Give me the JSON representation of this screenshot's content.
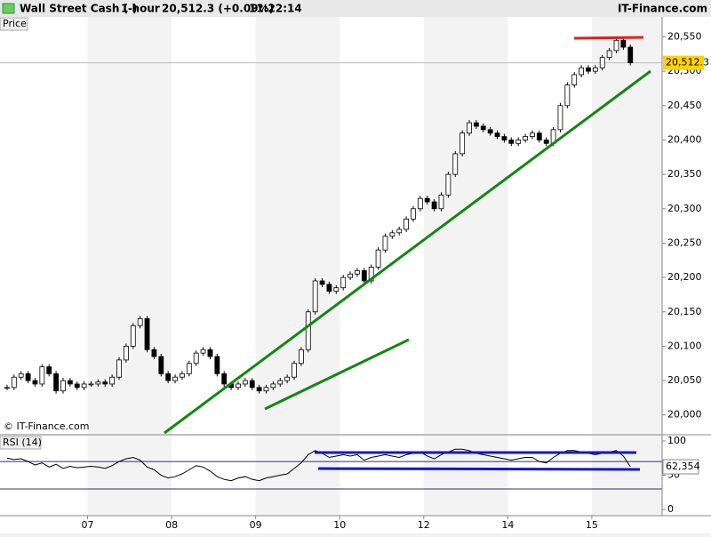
{
  "header": {
    "instrument": "Wall Street Cash (-)",
    "interval": "1 hour",
    "quote": "20,512.3 (+0.09%)",
    "time": "11:22:14",
    "brand": "IT-Finance.com"
  },
  "chart_data": [
    {
      "type": "candlestick",
      "title": "Price",
      "credit": "© IT-Finance.com",
      "up_color": "#ffffff",
      "down_color": "#000000",
      "last_label": "20,512.3",
      "last_color": "#ffd200",
      "values": [
        20040,
        20055,
        20060,
        20050,
        20045,
        20070,
        20060,
        20035,
        20050,
        20045,
        20040,
        20045,
        20045,
        20048,
        20045,
        20055,
        20080,
        20100,
        20130,
        20140,
        20095,
        20085,
        20060,
        20050,
        20055,
        20060,
        20075,
        20090,
        20095,
        20085,
        20060,
        20045,
        20040,
        20045,
        20050,
        20040,
        20035,
        20040,
        20045,
        20050,
        20055,
        20075,
        20095,
        20150,
        20195,
        20190,
        20180,
        20185,
        20200,
        20205,
        20210,
        20195,
        20215,
        20240,
        20260,
        20265,
        20270,
        20285,
        20300,
        20315,
        20310,
        20300,
        20320,
        20350,
        20380,
        20410,
        20425,
        20420,
        20415,
        20410,
        20405,
        20400,
        20395,
        20400,
        20405,
        20410,
        20400,
        20395,
        20415,
        20450,
        20480,
        20495,
        20505,
        20500,
        20505,
        20520,
        20530,
        20545,
        20535,
        20512.3
      ],
      "ylim": [
        19972.5,
        20570
      ],
      "yticks": [
        {
          "value": 20000,
          "label": "20,000"
        },
        {
          "value": 20050,
          "label": "20,050"
        },
        {
          "value": 20100,
          "label": "20,100"
        },
        {
          "value": 20150,
          "label": "20,150"
        },
        {
          "value": 20200,
          "label": "20,200"
        },
        {
          "value": 20250,
          "label": "20,250"
        },
        {
          "value": 20300,
          "label": "20,300"
        },
        {
          "value": 20350,
          "label": "20,350"
        },
        {
          "value": 20400,
          "label": "20,400"
        },
        {
          "value": 20450,
          "label": "20,450"
        },
        {
          "value": 20500,
          "label": "20,500"
        },
        {
          "value": 20550,
          "label": "20,550"
        }
      ]
    },
    {
      "type": "line",
      "title": "RSI (14)",
      "color": "#000000",
      "last_label": "62,354",
      "values": [
        75,
        73,
        74,
        70,
        65,
        68,
        62,
        66,
        60,
        63,
        61,
        62,
        63,
        62,
        60,
        64,
        70,
        74,
        76,
        72,
        62,
        58,
        50,
        46,
        48,
        52,
        58,
        64,
        62,
        56,
        48,
        44,
        42,
        46,
        48,
        44,
        42,
        46,
        48,
        50,
        52,
        60,
        68,
        80,
        86,
        82,
        76,
        78,
        80,
        78,
        80,
        72,
        76,
        78,
        80,
        78,
        76,
        80,
        82,
        84,
        78,
        74,
        80,
        84,
        88,
        88,
        86,
        82,
        80,
        78,
        76,
        74,
        72,
        74,
        76,
        76,
        70,
        68,
        76,
        82,
        86,
        86,
        84,
        82,
        80,
        82,
        84,
        86,
        78,
        62.354
      ],
      "ylim": [
        -9,
        107.8
      ],
      "yticks": [
        0,
        50,
        100
      ],
      "levels": [
        70,
        30
      ],
      "days": [
        "07",
        "08",
        "09",
        "10",
        "12",
        "14",
        "15"
      ]
    }
  ]
}
